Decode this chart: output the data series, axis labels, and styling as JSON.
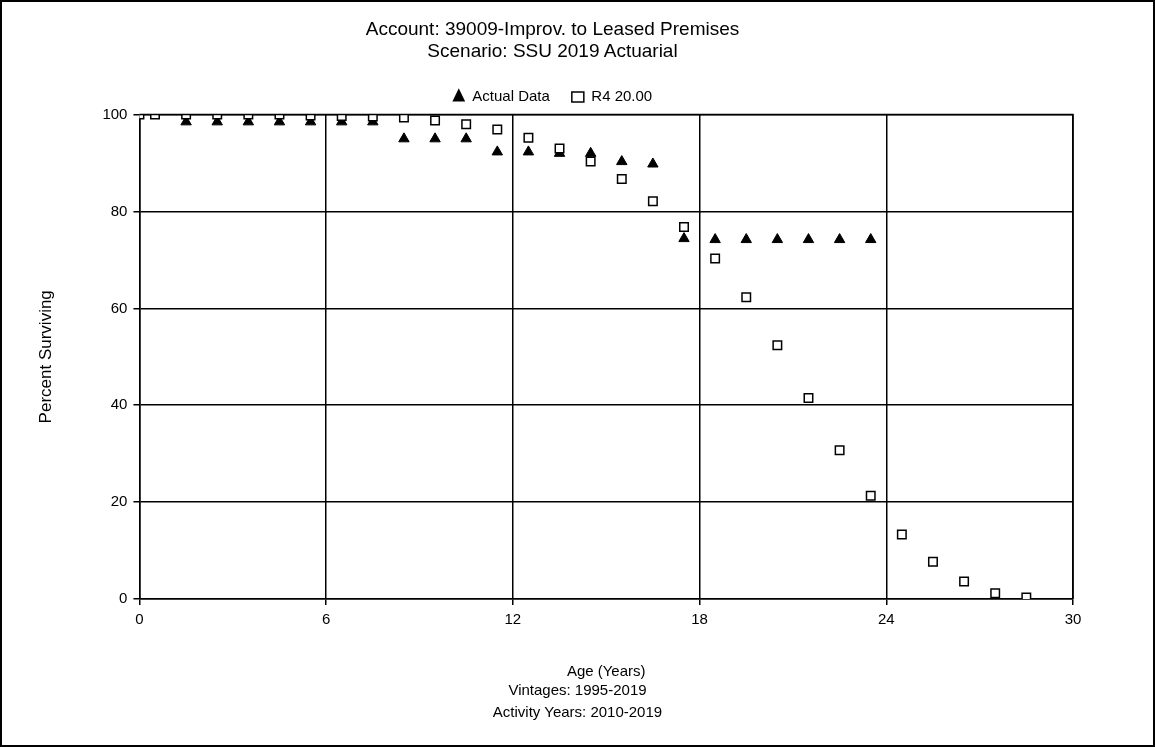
{
  "chart_data": {
    "type": "scatter",
    "title": [
      "Account: 39009-Improv. to Leased Premises",
      "Scenario: SSU 2019 Actuarial"
    ],
    "xlabel": "Age (Years)",
    "ylabel": "Percent Surviving",
    "annotations": [
      "Vintages: 1995-2019",
      "Activity Years: 2010-2019"
    ],
    "series": [
      {
        "name": "Actual Data",
        "color": "#000000",
        "marker": "triangle",
        "x": [
          1.5,
          2.5,
          3.5,
          4.5,
          5.5,
          6.5,
          7.5,
          8.5,
          9.5,
          10.5,
          11.5,
          12.5,
          13.5,
          14.5,
          15.5,
          16.5,
          17.5,
          18.5,
          19.5,
          20.5,
          21.5,
          22.5,
          23.5
        ],
        "values": [
          98.5,
          98.5,
          98.5,
          98.5,
          98.5,
          98.5,
          98.5,
          95,
          95,
          95,
          92.3,
          92.3,
          92,
          92,
          90.3,
          89.8,
          74.4,
          74.2,
          74.2,
          74.2,
          74.2,
          74.2,
          74.2
        ]
      },
      {
        "name": "R4 20.00",
        "color": "#000000",
        "marker": "square",
        "x": [
          0,
          0.5,
          1.5,
          2.5,
          3.5,
          4.5,
          5.5,
          6.5,
          7.5,
          8.5,
          9.5,
          10.5,
          11.5,
          12.5,
          13.5,
          14.5,
          15.5,
          16.5,
          17.5,
          18.5,
          19.5,
          20.5,
          21.5,
          22.5,
          23.5,
          24.5,
          25.5,
          26.5,
          27.5,
          28.5
        ],
        "values": [
          100,
          100,
          100,
          100,
          100,
          100,
          99.8,
          99.7,
          99.6,
          99.4,
          98.8,
          98,
          96.9,
          95.2,
          93,
          90.3,
          86.7,
          82.1,
          76.8,
          70.3,
          62.3,
          52.4,
          41.5,
          30.7,
          21.3,
          13.3,
          7.7,
          3.6,
          1.2,
          0.3
        ]
      }
    ],
    "xlim": [
      0,
      30
    ],
    "xticks": [
      0,
      6,
      12,
      18,
      24,
      30
    ],
    "ylim": [
      0,
      100
    ],
    "yticks": [
      0,
      20,
      40,
      60,
      80,
      100
    ],
    "grid": true,
    "legend": "top"
  }
}
